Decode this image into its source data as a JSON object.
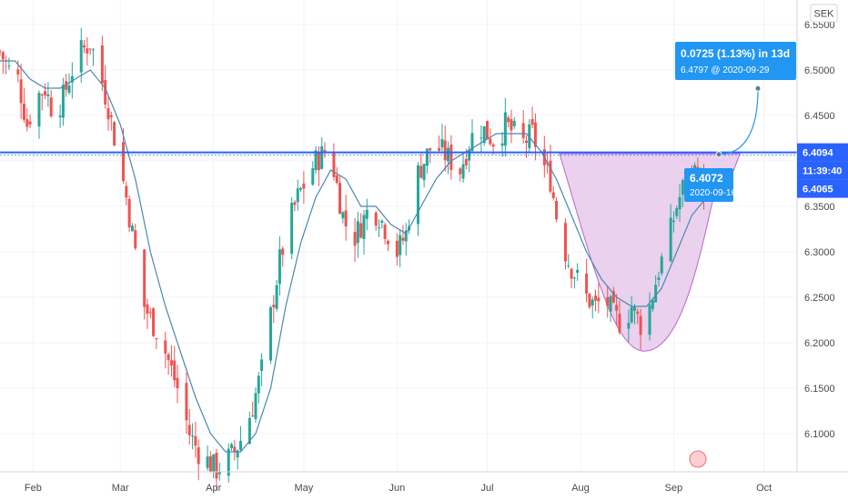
{
  "chart_data": {
    "type": "candlestick",
    "currency": "SEK",
    "x_axis": {
      "range": [
        "2020-01-21",
        "2020-10-12"
      ],
      "ticks": [
        "Feb",
        "Mar",
        "Apr",
        "May",
        "Jun",
        "Jul",
        "Aug",
        "Sep",
        "Oct"
      ]
    },
    "y_axis": {
      "range": [
        6.058,
        6.577
      ],
      "ticks": [
        "6.5500",
        "6.5000",
        "6.4500",
        "6.4000",
        "6.3500",
        "6.3000",
        "6.2500",
        "6.2000",
        "6.1500",
        "6.1000"
      ],
      "grid": true
    },
    "up_color": "#26a69a",
    "down_color": "#ef5350",
    "ma_color": "#4a88b0",
    "closes": [
      [
        0,
        6.52
      ],
      [
        3,
        6.5
      ],
      [
        6,
        6.49
      ],
      [
        9,
        6.44
      ],
      [
        12,
        6.47
      ],
      [
        15,
        6.48
      ],
      [
        18,
        6.45
      ],
      [
        21,
        6.47
      ],
      [
        24,
        6.5
      ],
      [
        27,
        6.52
      ],
      [
        30,
        6.53
      ],
      [
        33,
        6.5
      ],
      [
        36,
        6.46
      ],
      [
        39,
        6.41
      ],
      [
        42,
        6.36
      ],
      [
        45,
        6.3
      ],
      [
        48,
        6.24
      ],
      [
        51,
        6.22
      ],
      [
        54,
        6.2
      ],
      [
        57,
        6.17
      ],
      [
        60,
        6.14
      ],
      [
        63,
        6.1
      ],
      [
        66,
        6.08
      ],
      [
        69,
        6.07
      ],
      [
        72,
        6.06
      ],
      [
        75,
        6.07
      ],
      [
        78,
        6.08
      ],
      [
        81,
        6.1
      ],
      [
        84,
        6.13
      ],
      [
        87,
        6.17
      ],
      [
        90,
        6.23
      ],
      [
        93,
        6.29
      ],
      [
        96,
        6.33
      ],
      [
        99,
        6.36
      ],
      [
        102,
        6.38
      ],
      [
        105,
        6.4
      ],
      [
        108,
        6.41
      ],
      [
        111,
        6.39
      ],
      [
        114,
        6.34
      ],
      [
        117,
        6.31
      ],
      [
        120,
        6.33
      ],
      [
        123,
        6.35
      ],
      [
        126,
        6.34
      ],
      [
        129,
        6.32
      ],
      [
        132,
        6.3
      ],
      [
        135,
        6.32
      ],
      [
        138,
        6.38
      ],
      [
        141,
        6.4
      ],
      [
        144,
        6.42
      ],
      [
        147,
        6.41
      ],
      [
        150,
        6.4
      ],
      [
        153,
        6.39
      ],
      [
        156,
        6.42
      ],
      [
        159,
        6.44
      ],
      [
        162,
        6.43
      ],
      [
        165,
        6.42
      ],
      [
        168,
        6.44
      ],
      [
        171,
        6.43
      ],
      [
        174,
        6.42
      ],
      [
        177,
        6.43
      ],
      [
        180,
        6.4
      ],
      [
        183,
        6.38
      ],
      [
        186,
        6.32
      ],
      [
        189,
        6.29
      ],
      [
        192,
        6.27
      ],
      [
        195,
        6.25
      ],
      [
        198,
        6.24
      ],
      [
        201,
        6.25
      ],
      [
        204,
        6.23
      ],
      [
        207,
        6.22
      ],
      [
        210,
        6.24
      ],
      [
        213,
        6.22
      ],
      [
        216,
        6.24
      ],
      [
        219,
        6.28
      ],
      [
        222,
        6.31
      ],
      [
        225,
        6.35
      ],
      [
        228,
        6.38
      ],
      [
        231,
        6.39
      ],
      [
        234,
        6.37
      ],
      [
        237,
        6.36
      ],
      [
        240,
        6.38
      ]
    ],
    "ma": [
      [
        0,
        6.51
      ],
      [
        5,
        6.51
      ],
      [
        10,
        6.49
      ],
      [
        15,
        6.48
      ],
      [
        20,
        6.48
      ],
      [
        25,
        6.49
      ],
      [
        30,
        6.5
      ],
      [
        35,
        6.48
      ],
      [
        40,
        6.44
      ],
      [
        45,
        6.38
      ],
      [
        50,
        6.3
      ],
      [
        55,
        6.24
      ],
      [
        60,
        6.19
      ],
      [
        65,
        6.14
      ],
      [
        70,
        6.1
      ],
      [
        75,
        6.08
      ],
      [
        80,
        6.08
      ],
      [
        85,
        6.1
      ],
      [
        90,
        6.15
      ],
      [
        95,
        6.24
      ],
      [
        100,
        6.31
      ],
      [
        105,
        6.36
      ],
      [
        110,
        6.39
      ],
      [
        115,
        6.38
      ],
      [
        120,
        6.35
      ],
      [
        125,
        6.35
      ],
      [
        130,
        6.33
      ],
      [
        135,
        6.32
      ],
      [
        140,
        6.35
      ],
      [
        145,
        6.38
      ],
      [
        150,
        6.4
      ],
      [
        155,
        6.41
      ],
      [
        160,
        6.42
      ],
      [
        165,
        6.43
      ],
      [
        170,
        6.43
      ],
      [
        175,
        6.43
      ],
      [
        180,
        6.41
      ],
      [
        185,
        6.38
      ],
      [
        190,
        6.34
      ],
      [
        195,
        6.3
      ],
      [
        200,
        6.27
      ],
      [
        205,
        6.25
      ],
      [
        210,
        6.24
      ],
      [
        215,
        6.24
      ],
      [
        220,
        6.26
      ],
      [
        225,
        6.3
      ],
      [
        230,
        6.34
      ],
      [
        235,
        6.36
      ],
      [
        240,
        6.37
      ]
    ],
    "cup_pattern": {
      "fill": "#e1bee7",
      "stroke": "#ba68c8"
    },
    "horizontal_line": {
      "value": 6.4094,
      "color": "#2962ff"
    },
    "projection": {
      "start_day": 239,
      "start_value": 6.4072,
      "end_day": 252,
      "end_value": 6.4797
    },
    "badges": {
      "last_price": {
        "label": "6.4094",
        "color": "#2962ff"
      },
      "countdown": {
        "label": "11:39:40",
        "color": "#2962ff"
      },
      "bid": {
        "label": "6.4065",
        "color": "#2962ff"
      }
    },
    "callout_top": {
      "line1": "0.0725 (1.13%) in 13d",
      "line2": "6.4797 @ 2020-09-29",
      "color": "#2196f3"
    },
    "callout_bottom": {
      "line1": "6.4072",
      "line2": "2020-09-16",
      "color": "#2196f3"
    },
    "axis_label": "SEK"
  }
}
